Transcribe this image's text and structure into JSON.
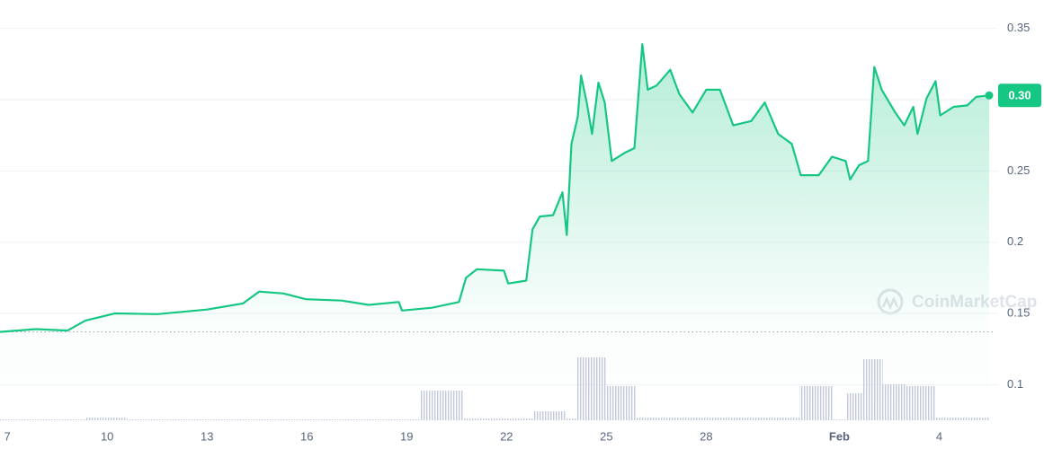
{
  "chart_data": {
    "type": "line",
    "series": [
      {
        "name": "Price",
        "color": "#16c784",
        "x": [
          6.78,
          7.86,
          8.81,
          9.35,
          10.24,
          11.51,
          13.0,
          14.08,
          14.57,
          15.3,
          15.97,
          17.05,
          17.86,
          18.76,
          18.86,
          19.76,
          20.57,
          20.78,
          21.11,
          21.92,
          22.05,
          22.59,
          22.78,
          23.0,
          23.4,
          23.68,
          23.81,
          23.95,
          24.14,
          24.24,
          24.41,
          24.57,
          24.76,
          24.95,
          25.16,
          25.57,
          25.84,
          26.08,
          26.24,
          26.51,
          26.92,
          27.19,
          27.59,
          28.0,
          28.41,
          28.81,
          29.35,
          29.76,
          30.16,
          30.57,
          30.84,
          31.38,
          31.78,
          32.19,
          32.32,
          32.59,
          32.86,
          33.05,
          33.27,
          33.68,
          33.95,
          34.22,
          34.35,
          34.62,
          34.89,
          35.03,
          35.43,
          35.84,
          36.11,
          36.5
        ],
        "values": [
          0.137,
          0.139,
          0.138,
          0.145,
          0.15,
          0.1495,
          0.1527,
          0.157,
          0.1653,
          0.164,
          0.16,
          0.159,
          0.156,
          0.158,
          0.152,
          0.154,
          0.158,
          0.175,
          0.181,
          0.18,
          0.171,
          0.173,
          0.209,
          0.218,
          0.219,
          0.235,
          0.205,
          0.269,
          0.288,
          0.317,
          0.298,
          0.276,
          0.312,
          0.298,
          0.257,
          0.263,
          0.266,
          0.339,
          0.307,
          0.31,
          0.321,
          0.304,
          0.291,
          0.307,
          0.307,
          0.282,
          0.285,
          0.298,
          0.276,
          0.269,
          0.247,
          0.247,
          0.26,
          0.257,
          0.244,
          0.254,
          0.257,
          0.323,
          0.307,
          0.291,
          0.282,
          0.295,
          0.276,
          0.301,
          0.313,
          0.289,
          0.295,
          0.296,
          0.302,
          0.303
        ]
      }
    ],
    "xlim": [
      6.78,
      36.5
    ],
    "xticks": [
      7,
      10,
      13,
      16,
      19,
      22,
      25,
      28,
      {
        "value": 32,
        "label": "Feb"
      },
      {
        "value": 35,
        "label": "4"
      }
    ],
    "ylim": [
      0.075,
      0.37
    ],
    "yticks": [
      0.1,
      0.15,
      0.2,
      0.25,
      0.3,
      0.35
    ],
    "grid": true,
    "reference_line": 0.137,
    "price_badge": "0.30",
    "volume": {
      "color": "#c9cfe0",
      "ylim": [
        0,
        100
      ],
      "bins": [
        6.78,
        9.35,
        10.6,
        19.4,
        20.7,
        22.8,
        23.8,
        24.1,
        25.0,
        25.9,
        30.8,
        31.8,
        32.2,
        32.7,
        33.3,
        34.0,
        34.9,
        36.5
      ],
      "values": [
        1,
        3,
        1,
        33,
        2,
        10,
        2,
        70,
        38,
        3,
        38,
        1,
        30,
        68,
        40,
        38,
        3
      ]
    },
    "watermark": "CoinMarketCap"
  }
}
